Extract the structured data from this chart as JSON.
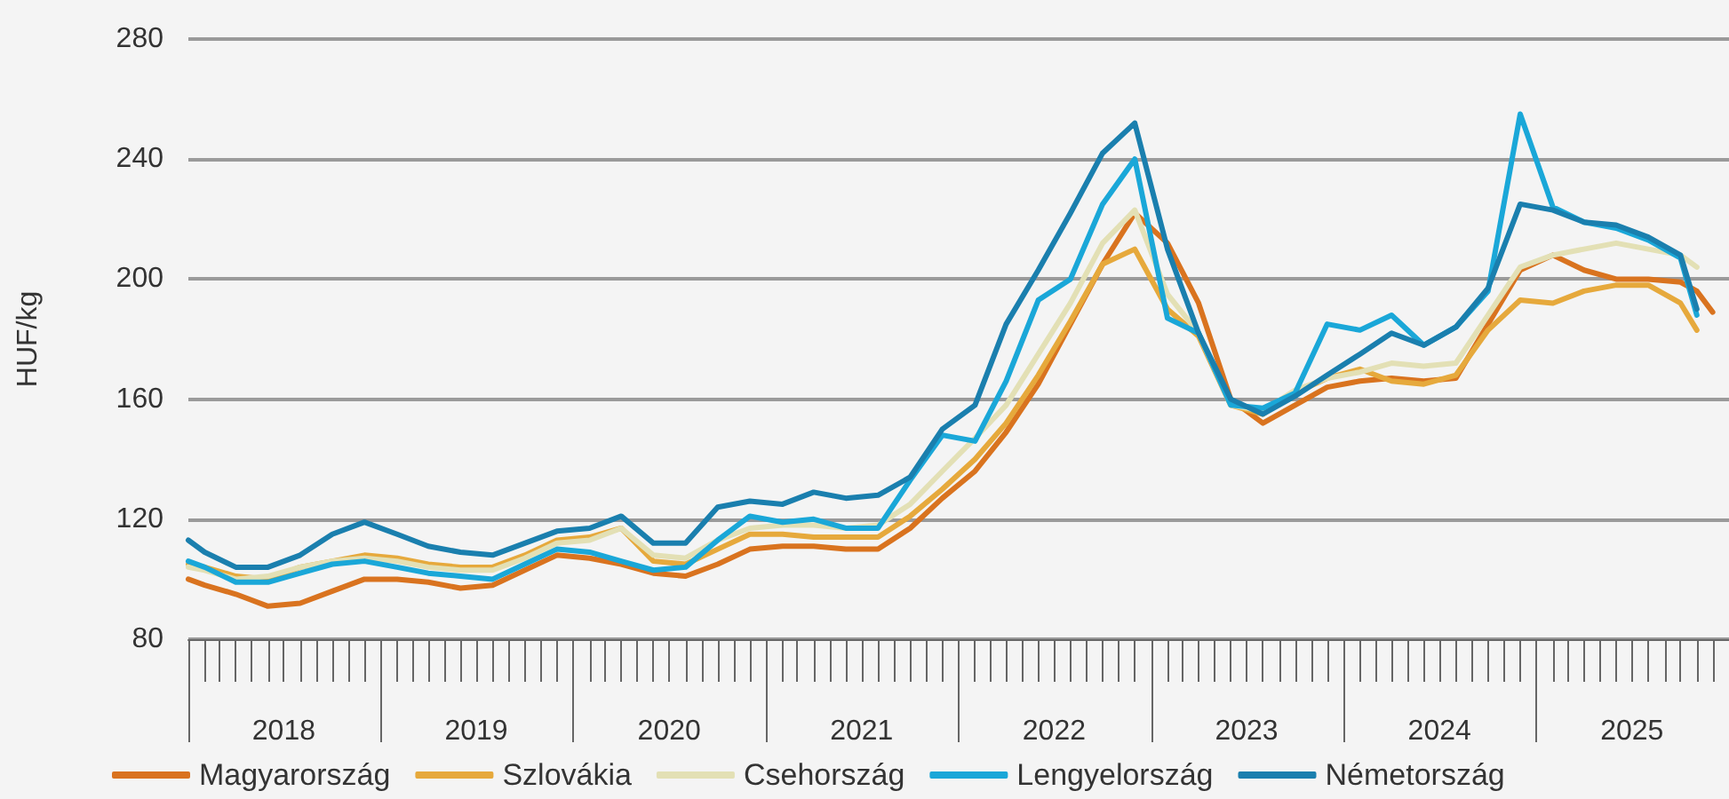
{
  "chart_data": {
    "type": "line",
    "ylabel": "HUF/kg",
    "x": [
      "2018-01",
      "2018-02",
      "2018-04",
      "2018-06",
      "2018-08",
      "2018-10",
      "2018-12",
      "2019-02",
      "2019-04",
      "2019-06",
      "2019-08",
      "2019-10",
      "2019-12",
      "2020-02",
      "2020-04",
      "2020-06",
      "2020-08",
      "2020-10",
      "2020-12",
      "2021-02",
      "2021-04",
      "2021-06",
      "2021-08",
      "2021-10",
      "2021-12",
      "2022-02",
      "2022-04",
      "2022-06",
      "2022-08",
      "2022-10",
      "2022-12",
      "2023-02",
      "2023-04",
      "2023-06",
      "2023-08",
      "2023-10",
      "2023-12",
      "2024-02",
      "2024-04",
      "2024-06",
      "2024-08",
      "2024-10",
      "2024-12",
      "2025-02",
      "2025-04",
      "2025-06",
      "2025-08",
      "2025-10",
      "2025-11",
      "2025-12"
    ],
    "series": [
      {
        "name": "Magyarország",
        "color": "#d9731f",
        "values": [
          100,
          98,
          95,
          91,
          92,
          96,
          100,
          100,
          99,
          97,
          98,
          103,
          108,
          107,
          105,
          102,
          101,
          105,
          110,
          111,
          111,
          110,
          110,
          117,
          127,
          136,
          149,
          165,
          185,
          205,
          222,
          212,
          192,
          160,
          152,
          158,
          164,
          166,
          167,
          166,
          167,
          185,
          203,
          208,
          203,
          200,
          200,
          199,
          196,
          189
        ]
      },
      {
        "name": "Szlovákia",
        "color": "#e6a93c",
        "values": [
          105,
          104,
          101,
          100,
          104,
          106,
          108,
          107,
          105,
          104,
          104,
          108,
          113,
          114,
          117,
          106,
          105,
          110,
          115,
          115,
          114,
          114,
          114,
          121,
          130,
          140,
          152,
          168,
          186,
          205,
          210,
          190,
          181,
          158,
          155,
          162,
          167,
          170,
          166,
          165,
          168,
          183,
          193,
          192,
          196,
          198,
          198,
          192,
          183,
          null
        ]
      },
      {
        "name": "Csehország",
        "color": "#e3e0b5",
        "values": [
          104,
          103,
          100,
          101,
          104,
          106,
          107,
          106,
          104,
          103,
          103,
          107,
          112,
          113,
          117,
          108,
          107,
          113,
          117,
          118,
          118,
          117,
          118,
          125,
          136,
          147,
          158,
          175,
          192,
          212,
          223,
          195,
          182,
          158,
          156,
          163,
          167,
          169,
          172,
          171,
          172,
          188,
          204,
          208,
          210,
          212,
          210,
          208,
          204,
          null
        ]
      },
      {
        "name": "Lengyelország",
        "color": "#1aa7d8",
        "values": [
          106,
          104,
          99,
          99,
          102,
          105,
          106,
          104,
          102,
          101,
          100,
          105,
          110,
          109,
          106,
          103,
          104,
          113,
          121,
          119,
          120,
          117,
          117,
          133,
          148,
          146,
          166,
          193,
          200,
          225,
          240,
          187,
          182,
          158,
          157,
          162,
          185,
          183,
          188,
          178,
          184,
          196,
          255,
          224,
          219,
          217,
          213,
          207,
          188,
          null
        ]
      },
      {
        "name": "Németország",
        "color": "#1a7fae",
        "values": [
          113,
          109,
          104,
          104,
          108,
          115,
          119,
          115,
          111,
          109,
          108,
          112,
          116,
          117,
          121,
          112,
          112,
          124,
          126,
          125,
          129,
          127,
          128,
          134,
          150,
          158,
          185,
          203,
          222,
          242,
          252,
          210,
          182,
          160,
          155,
          161,
          168,
          175,
          182,
          178,
          184,
          197,
          225,
          223,
          219,
          218,
          214,
          208,
          190,
          null
        ]
      }
    ],
    "xlim": [
      "2018-01",
      "2026-01"
    ],
    "xticks": [
      {
        "value": "2018-07",
        "label": "2018"
      },
      {
        "value": "2019-07",
        "label": "2019"
      },
      {
        "value": "2020-07",
        "label": "2020"
      },
      {
        "value": "2021-07",
        "label": "2021"
      },
      {
        "value": "2022-07",
        "label": "2022"
      },
      {
        "value": "2023-07",
        "label": "2023"
      },
      {
        "value": "2024-07",
        "label": "2024"
      },
      {
        "value": "2025-07",
        "label": "2025"
      }
    ],
    "ylim": [
      80,
      280
    ],
    "yticks": [
      80,
      120,
      160,
      200,
      240,
      280
    ],
    "grid": "y",
    "legend": "bottom",
    "marker": "none",
    "line_style": "solid"
  }
}
